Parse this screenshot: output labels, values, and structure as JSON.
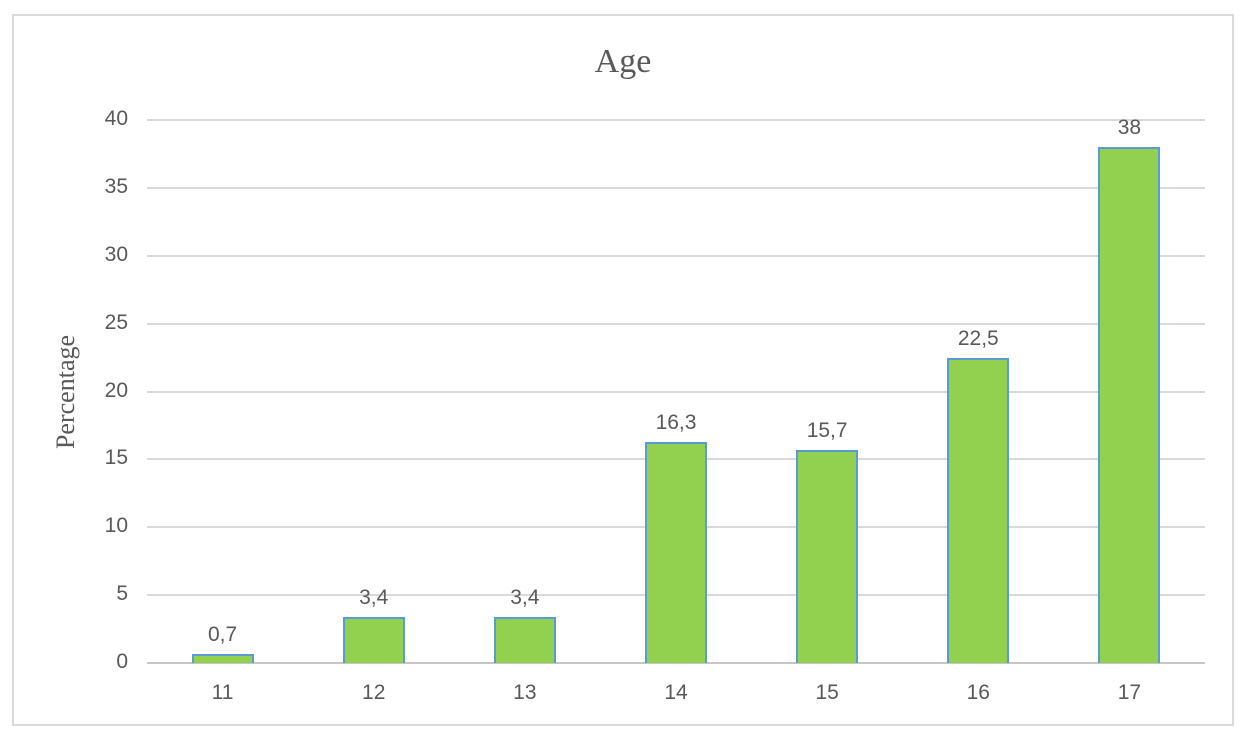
{
  "chart_data": {
    "type": "bar",
    "title": "Age",
    "xlabel": "",
    "ylabel": "Percentage",
    "categories": [
      "11",
      "12",
      "13",
      "14",
      "15",
      "16",
      "17"
    ],
    "values": [
      0.7,
      3.4,
      3.4,
      16.3,
      15.7,
      22.5,
      38
    ],
    "data_labels": [
      "0,7",
      "3,4",
      "3,4",
      "16,3",
      "15,7",
      "22,5",
      "38"
    ],
    "ylim": [
      0,
      40
    ],
    "ytick_step": 5,
    "ytick_labels": [
      "0",
      "5",
      "10",
      "15",
      "20",
      "25",
      "30",
      "35",
      "40"
    ],
    "grid": true,
    "legend": false,
    "colors": {
      "bar_fill": "#92D050",
      "bar_border": "#5B9BD5",
      "gridline": "#D9D9D9",
      "axis_line": "#C6C6C6",
      "text": "#595959",
      "frame_border": "#D9D9D9",
      "background": "#FFFFFF"
    }
  }
}
